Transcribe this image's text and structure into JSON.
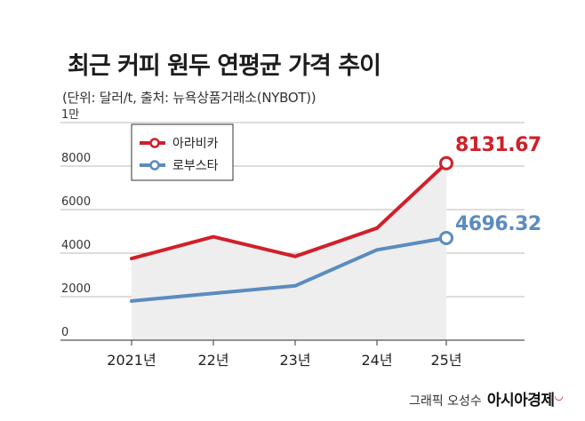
{
  "header": {
    "title": "최근 커피 원두 연평균 가격 추이",
    "subtitle": "(단위: 달러/t, 출처: 뉴욕상품거래소(NYBOT))"
  },
  "credit": {
    "byline": "그래픽 오성수",
    "brand": "아시아경제"
  },
  "colors": {
    "arabica": "#d0202a",
    "robusta": "#5b8cbf",
    "area": "#eeeeee",
    "axis": "#555555",
    "grid": "#bbbbbb"
  },
  "chart_data": {
    "type": "line",
    "categories": [
      "2021년",
      "22년",
      "23년",
      "24년",
      "25년"
    ],
    "series": [
      {
        "name": "아라비카",
        "values": [
          3750,
          4750,
          3850,
          5150,
          8131.67
        ]
      },
      {
        "name": "로부스타",
        "values": [
          1800,
          2150,
          2500,
          4150,
          4696.32
        ]
      }
    ],
    "data_labels": {
      "아라비카": "8131.67",
      "로부스타": "4696.32"
    },
    "y_ticks": [
      "0",
      "2000",
      "4000",
      "6000",
      "8000",
      "1만"
    ],
    "ylim": [
      0,
      10000
    ],
    "grid": true,
    "legend": "top-left"
  }
}
